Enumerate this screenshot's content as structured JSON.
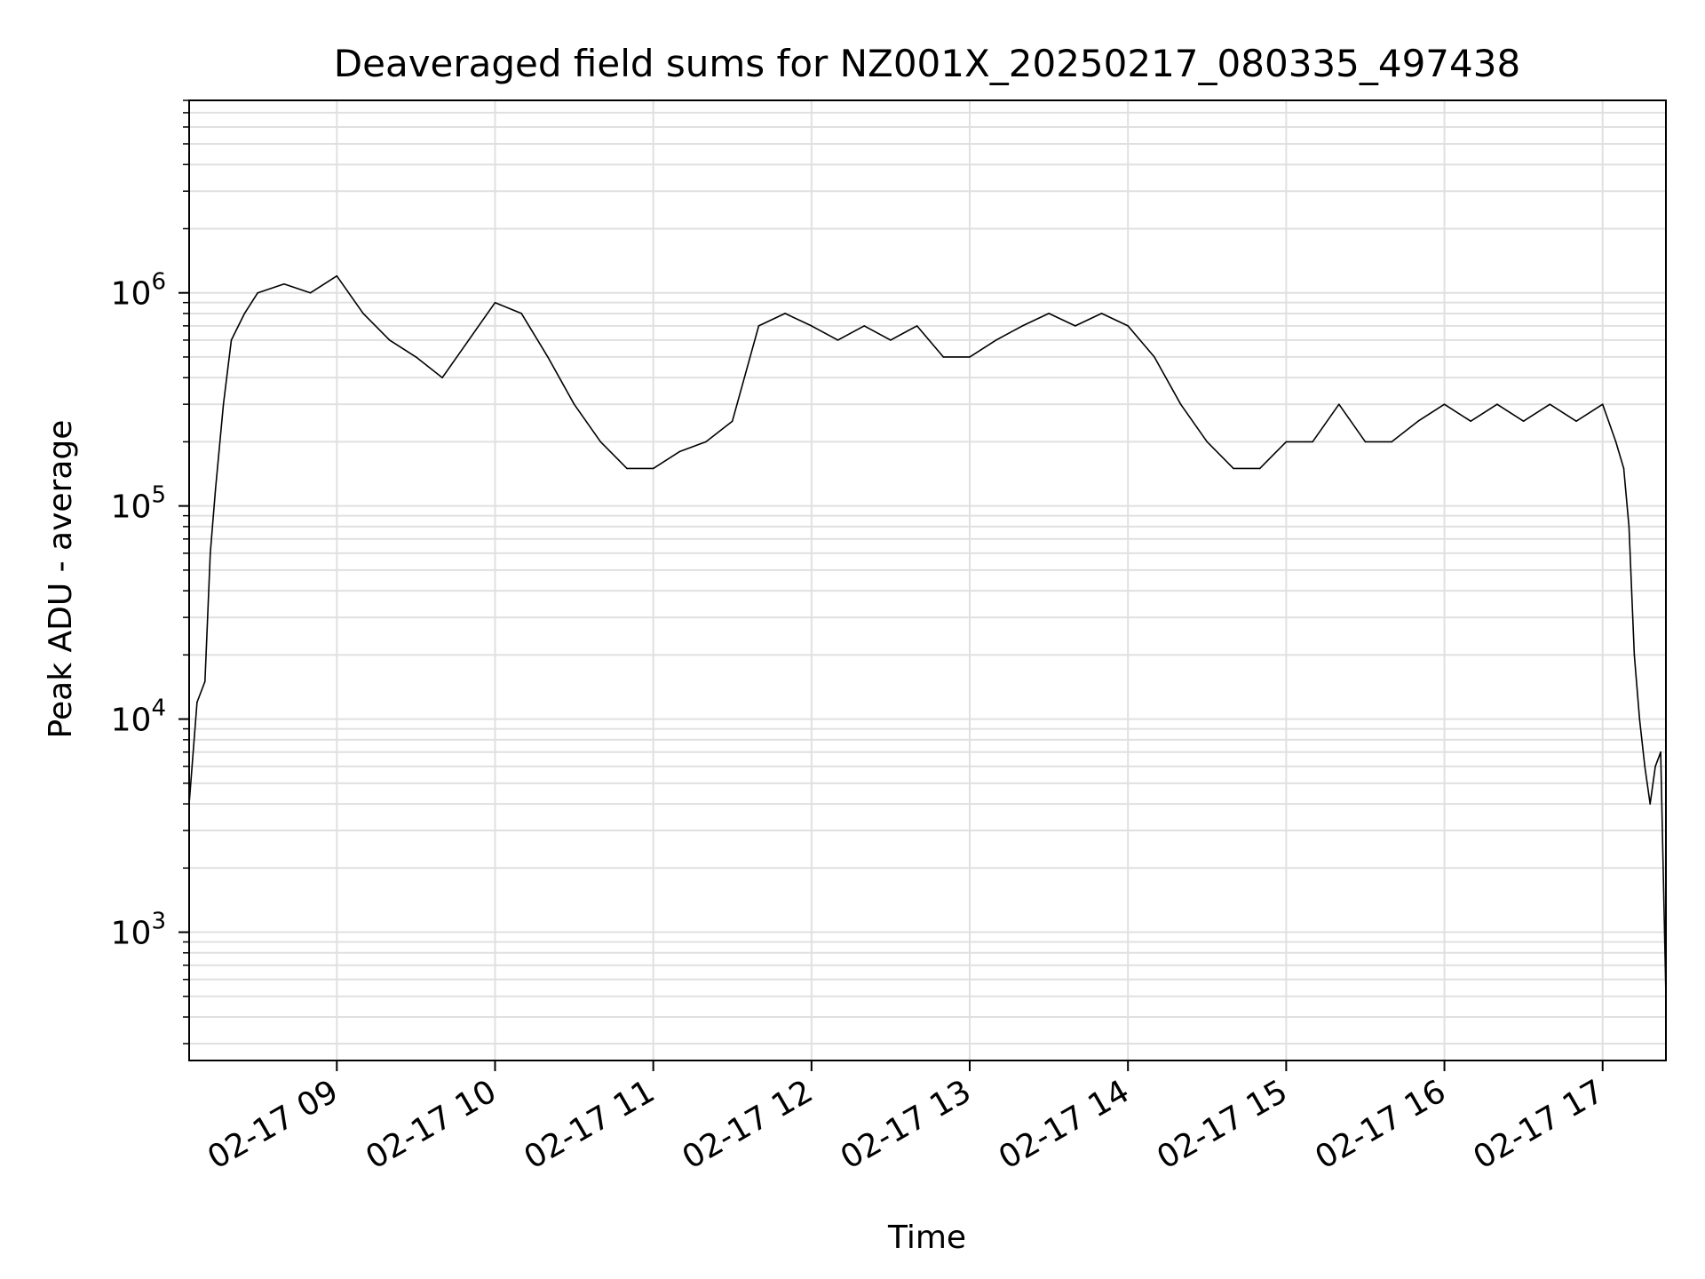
{
  "chart_data": {
    "type": "line",
    "title": "Deaveraged field sums for NZ001X_20250217_080335_497438",
    "xlabel": "Time",
    "ylabel": "Peak ADU - average",
    "x_scale": "time",
    "y_scale": "log",
    "xlim": [
      "2025-02-17 08:04",
      "2025-02-17 17:24"
    ],
    "ylim": [
      250,
      8000000
    ],
    "x_ticks": [
      {
        "value": "2025-02-17 09:00",
        "label": "02-17 09"
      },
      {
        "value": "2025-02-17 10:00",
        "label": "02-17 10"
      },
      {
        "value": "2025-02-17 11:00",
        "label": "02-17 11"
      },
      {
        "value": "2025-02-17 12:00",
        "label": "02-17 12"
      },
      {
        "value": "2025-02-17 13:00",
        "label": "02-17 13"
      },
      {
        "value": "2025-02-17 14:00",
        "label": "02-17 14"
      },
      {
        "value": "2025-02-17 15:00",
        "label": "02-17 15"
      },
      {
        "value": "2025-02-17 16:00",
        "label": "02-17 16"
      },
      {
        "value": "2025-02-17 17:00",
        "label": "02-17 17"
      }
    ],
    "y_ticks": [
      {
        "value": 1000,
        "base": "10",
        "exp": "3"
      },
      {
        "value": 10000,
        "base": "10",
        "exp": "4"
      },
      {
        "value": 100000,
        "base": "10",
        "exp": "5"
      },
      {
        "value": 1000000,
        "base": "10",
        "exp": "6"
      }
    ],
    "grid": true,
    "colors": {
      "line": "#000000",
      "grid": "#e0e0e0",
      "axes": "#000000"
    },
    "series": [
      {
        "x": [
          "2025-02-17 08:04",
          "2025-02-17 08:07",
          "2025-02-17 08:10",
          "2025-02-17 08:12",
          "2025-02-17 08:14",
          "2025-02-17 08:17",
          "2025-02-17 08:20",
          "2025-02-17 08:25",
          "2025-02-17 08:30",
          "2025-02-17 08:40",
          "2025-02-17 08:50",
          "2025-02-17 09:00",
          "2025-02-17 09:10",
          "2025-02-17 09:20",
          "2025-02-17 09:30",
          "2025-02-17 09:40",
          "2025-02-17 09:50",
          "2025-02-17 10:00",
          "2025-02-17 10:10",
          "2025-02-17 10:20",
          "2025-02-17 10:30",
          "2025-02-17 10:40",
          "2025-02-17 10:50",
          "2025-02-17 11:00",
          "2025-02-17 11:10",
          "2025-02-17 11:20",
          "2025-02-17 11:30",
          "2025-02-17 11:40",
          "2025-02-17 11:50",
          "2025-02-17 12:00",
          "2025-02-17 12:10",
          "2025-02-17 12:20",
          "2025-02-17 12:30",
          "2025-02-17 12:40",
          "2025-02-17 12:50",
          "2025-02-17 13:00",
          "2025-02-17 13:10",
          "2025-02-17 13:20",
          "2025-02-17 13:30",
          "2025-02-17 13:40",
          "2025-02-17 13:50",
          "2025-02-17 14:00",
          "2025-02-17 14:10",
          "2025-02-17 14:20",
          "2025-02-17 14:30",
          "2025-02-17 14:40",
          "2025-02-17 14:50",
          "2025-02-17 15:00",
          "2025-02-17 15:10",
          "2025-02-17 15:20",
          "2025-02-17 15:30",
          "2025-02-17 15:40",
          "2025-02-17 15:50",
          "2025-02-17 16:00",
          "2025-02-17 16:10",
          "2025-02-17 16:20",
          "2025-02-17 16:30",
          "2025-02-17 16:40",
          "2025-02-17 16:50",
          "2025-02-17 17:00",
          "2025-02-17 17:05",
          "2025-02-17 17:08",
          "2025-02-17 17:10",
          "2025-02-17 17:12",
          "2025-02-17 17:14",
          "2025-02-17 17:16",
          "2025-02-17 17:18",
          "2025-02-17 17:20",
          "2025-02-17 17:22",
          "2025-02-17 17:24"
        ],
        "values": [
          4000,
          12000,
          15000,
          60000,
          120000,
          300000,
          600000,
          800000,
          1000000,
          1100000,
          1000000,
          1200000,
          800000,
          600000,
          500000,
          400000,
          600000,
          900000,
          800000,
          500000,
          300000,
          200000,
          150000,
          150000,
          180000,
          200000,
          250000,
          700000,
          800000,
          700000,
          600000,
          700000,
          600000,
          700000,
          500000,
          500000,
          600000,
          700000,
          800000,
          700000,
          800000,
          700000,
          500000,
          300000,
          200000,
          150000,
          150000,
          200000,
          200000,
          300000,
          200000,
          200000,
          250000,
          300000,
          250000,
          300000,
          250000,
          300000,
          250000,
          300000,
          200000,
          150000,
          80000,
          20000,
          10000,
          6000,
          4000,
          6000,
          7000,
          500
        ]
      }
    ]
  }
}
